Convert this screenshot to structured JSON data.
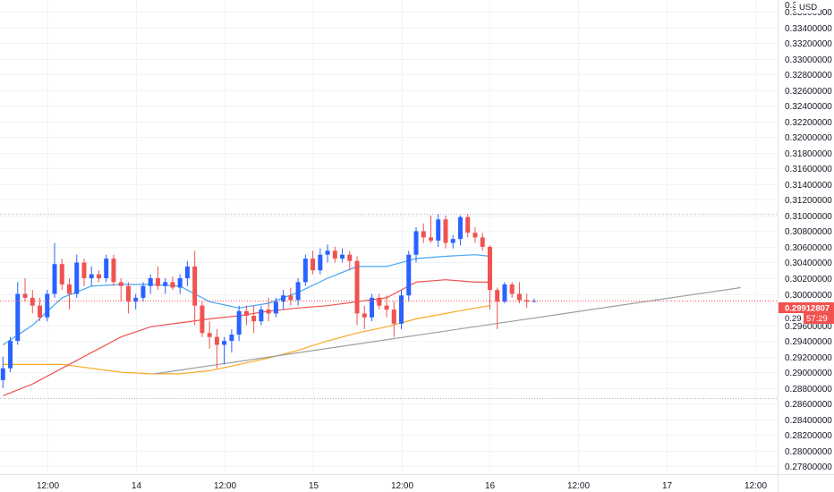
{
  "currency_label": "USD",
  "price_label": {
    "value": "0.29912807",
    "countdown": "57:29",
    "price_prefix": "0.29"
  },
  "colors": {
    "up": "#2962ff",
    "down": "#ef5350",
    "grid": "#f0f3fa",
    "ma_fast": "#42a5f5",
    "ma_mid": "#ef5350",
    "ma_slow": "#f9a825",
    "trendline": "#9e9e9e",
    "hline": "#b2b5be",
    "current_price": "#ef5350"
  },
  "chart_data": {
    "type": "candlestick",
    "y_axis": {
      "min": 0.277,
      "max": 0.3375,
      "ticks": [
        "0.33600000",
        "0.33400000",
        "0.33200000",
        "0.33000000",
        "0.32800000",
        "0.32600000",
        "0.32400000",
        "0.32200000",
        "0.32000000",
        "0.31800000",
        "0.31600000",
        "0.31400000",
        "0.31200000",
        "0.31000000",
        "0.30800000",
        "0.30600000",
        "0.30400000",
        "0.30200000",
        "0.30000000",
        "0.29600000",
        "0.29400000",
        "0.29200000",
        "0.29000000",
        "0.28800000",
        "0.28600000",
        "0.28400000",
        "0.28200000",
        "0.28000000",
        "0.27800000"
      ],
      "top_partial": "0.3"
    },
    "x_axis": {
      "ticks": [
        {
          "label": "12:00",
          "t": 6
        },
        {
          "label": "14",
          "t": 18
        },
        {
          "label": "12:00",
          "t": 30
        },
        {
          "label": "15",
          "t": 42
        },
        {
          "label": "12:00",
          "t": 54
        },
        {
          "label": "16",
          "t": 66
        },
        {
          "label": "12:00",
          "t": 78
        },
        {
          "label": "17",
          "t": 90
        },
        {
          "label": "12:00",
          "t": 102
        }
      ],
      "t_min": -0.4,
      "t_max": 105
    },
    "candles": [
      {
        "t": 0,
        "o": 0.289,
        "h": 0.292,
        "l": 0.288,
        "c": 0.2905
      },
      {
        "t": 1,
        "o": 0.2905,
        "h": 0.2945,
        "l": 0.29,
        "c": 0.294
      },
      {
        "t": 2,
        "o": 0.294,
        "h": 0.3015,
        "l": 0.2935,
        "c": 0.3
      },
      {
        "t": 3,
        "o": 0.3,
        "h": 0.302,
        "l": 0.299,
        "c": 0.2995
      },
      {
        "t": 4,
        "o": 0.2995,
        "h": 0.3005,
        "l": 0.2975,
        "c": 0.2985
      },
      {
        "t": 5,
        "o": 0.2985,
        "h": 0.2995,
        "l": 0.2965,
        "c": 0.297
      },
      {
        "t": 6,
        "o": 0.297,
        "h": 0.3005,
        "l": 0.2965,
        "c": 0.3
      },
      {
        "t": 7,
        "o": 0.3,
        "h": 0.3065,
        "l": 0.2995,
        "c": 0.3038
      },
      {
        "t": 8,
        "o": 0.3038,
        "h": 0.3045,
        "l": 0.3005,
        "c": 0.3012
      },
      {
        "t": 9,
        "o": 0.3012,
        "h": 0.302,
        "l": 0.298,
        "c": 0.3
      },
      {
        "t": 10,
        "o": 0.3,
        "h": 0.305,
        "l": 0.2995,
        "c": 0.304
      },
      {
        "t": 11,
        "o": 0.304,
        "h": 0.3045,
        "l": 0.301,
        "c": 0.302
      },
      {
        "t": 12,
        "o": 0.302,
        "h": 0.3035,
        "l": 0.301,
        "c": 0.3025
      },
      {
        "t": 13,
        "o": 0.3025,
        "h": 0.303,
        "l": 0.3015,
        "c": 0.302
      },
      {
        "t": 14,
        "o": 0.302,
        "h": 0.305,
        "l": 0.3015,
        "c": 0.3045
      },
      {
        "t": 15,
        "o": 0.3045,
        "h": 0.305,
        "l": 0.301,
        "c": 0.3015
      },
      {
        "t": 16,
        "o": 0.3015,
        "h": 0.302,
        "l": 0.299,
        "c": 0.301
      },
      {
        "t": 17,
        "o": 0.301,
        "h": 0.3015,
        "l": 0.2975,
        "c": 0.299
      },
      {
        "t": 18,
        "o": 0.299,
        "h": 0.3,
        "l": 0.298,
        "c": 0.2995
      },
      {
        "t": 19,
        "o": 0.2995,
        "h": 0.3015,
        "l": 0.299,
        "c": 0.301
      },
      {
        "t": 20,
        "o": 0.301,
        "h": 0.3025,
        "l": 0.3,
        "c": 0.302
      },
      {
        "t": 21,
        "o": 0.302,
        "h": 0.3035,
        "l": 0.3005,
        "c": 0.301
      },
      {
        "t": 22,
        "o": 0.301,
        "h": 0.302,
        "l": 0.3,
        "c": 0.3015
      },
      {
        "t": 23,
        "o": 0.3015,
        "h": 0.3022,
        "l": 0.3005,
        "c": 0.3008
      },
      {
        "t": 24,
        "o": 0.3008,
        "h": 0.3025,
        "l": 0.3,
        "c": 0.302
      },
      {
        "t": 25,
        "o": 0.302,
        "h": 0.3042,
        "l": 0.301,
        "c": 0.3035
      },
      {
        "t": 26,
        "o": 0.3035,
        "h": 0.3055,
        "l": 0.296,
        "c": 0.2985
      },
      {
        "t": 27,
        "o": 0.2985,
        "h": 0.299,
        "l": 0.2945,
        "c": 0.295
      },
      {
        "t": 28,
        "o": 0.295,
        "h": 0.2965,
        "l": 0.293,
        "c": 0.2945
      },
      {
        "t": 29,
        "o": 0.2945,
        "h": 0.2955,
        "l": 0.2905,
        "c": 0.2935
      },
      {
        "t": 30,
        "o": 0.2935,
        "h": 0.2945,
        "l": 0.291,
        "c": 0.294
      },
      {
        "t": 31,
        "o": 0.294,
        "h": 0.2955,
        "l": 0.2925,
        "c": 0.2948
      },
      {
        "t": 32,
        "o": 0.2948,
        "h": 0.2985,
        "l": 0.294,
        "c": 0.2978
      },
      {
        "t": 33,
        "o": 0.2978,
        "h": 0.2985,
        "l": 0.296,
        "c": 0.2972
      },
      {
        "t": 34,
        "o": 0.2972,
        "h": 0.2985,
        "l": 0.295,
        "c": 0.2965
      },
      {
        "t": 35,
        "o": 0.2965,
        "h": 0.2985,
        "l": 0.296,
        "c": 0.298
      },
      {
        "t": 36,
        "o": 0.298,
        "h": 0.2995,
        "l": 0.2965,
        "c": 0.2975
      },
      {
        "t": 37,
        "o": 0.2975,
        "h": 0.2995,
        "l": 0.297,
        "c": 0.299
      },
      {
        "t": 38,
        "o": 0.299,
        "h": 0.3005,
        "l": 0.298,
        "c": 0.2998
      },
      {
        "t": 39,
        "o": 0.2998,
        "h": 0.3008,
        "l": 0.2985,
        "c": 0.2992
      },
      {
        "t": 40,
        "o": 0.2992,
        "h": 0.302,
        "l": 0.2985,
        "c": 0.3015
      },
      {
        "t": 41,
        "o": 0.3015,
        "h": 0.305,
        "l": 0.301,
        "c": 0.3045
      },
      {
        "t": 42,
        "o": 0.3045,
        "h": 0.3055,
        "l": 0.3025,
        "c": 0.303
      },
      {
        "t": 43,
        "o": 0.303,
        "h": 0.3058,
        "l": 0.3025,
        "c": 0.305
      },
      {
        "t": 44,
        "o": 0.305,
        "h": 0.3063,
        "l": 0.304,
        "c": 0.3055
      },
      {
        "t": 45,
        "o": 0.3055,
        "h": 0.306,
        "l": 0.304,
        "c": 0.3045
      },
      {
        "t": 46,
        "o": 0.3045,
        "h": 0.3058,
        "l": 0.304,
        "c": 0.305
      },
      {
        "t": 47,
        "o": 0.305,
        "h": 0.3055,
        "l": 0.303,
        "c": 0.3042
      },
      {
        "t": 48,
        "o": 0.3042,
        "h": 0.3048,
        "l": 0.296,
        "c": 0.2975
      },
      {
        "t": 49,
        "o": 0.2975,
        "h": 0.2985,
        "l": 0.2955,
        "c": 0.297
      },
      {
        "t": 50,
        "o": 0.297,
        "h": 0.3,
        "l": 0.2965,
        "c": 0.2995
      },
      {
        "t": 51,
        "o": 0.2995,
        "h": 0.3,
        "l": 0.298,
        "c": 0.2985
      },
      {
        "t": 52,
        "o": 0.2985,
        "h": 0.2998,
        "l": 0.297,
        "c": 0.298
      },
      {
        "t": 53,
        "o": 0.298,
        "h": 0.299,
        "l": 0.2945,
        "c": 0.2962
      },
      {
        "t": 54,
        "o": 0.2962,
        "h": 0.3005,
        "l": 0.2955,
        "c": 0.2998
      },
      {
        "t": 55,
        "o": 0.2998,
        "h": 0.3055,
        "l": 0.299,
        "c": 0.305
      },
      {
        "t": 56,
        "o": 0.305,
        "h": 0.3085,
        "l": 0.304,
        "c": 0.308
      },
      {
        "t": 57,
        "o": 0.308,
        "h": 0.309,
        "l": 0.3065,
        "c": 0.3072
      },
      {
        "t": 58,
        "o": 0.3072,
        "h": 0.31,
        "l": 0.3065,
        "c": 0.3068
      },
      {
        "t": 59,
        "o": 0.3068,
        "h": 0.3102,
        "l": 0.306,
        "c": 0.3095
      },
      {
        "t": 60,
        "o": 0.3095,
        "h": 0.31,
        "l": 0.3058,
        "c": 0.3065
      },
      {
        "t": 61,
        "o": 0.3065,
        "h": 0.3075,
        "l": 0.3058,
        "c": 0.307
      },
      {
        "t": 62,
        "o": 0.307,
        "h": 0.31,
        "l": 0.3062,
        "c": 0.3098
      },
      {
        "t": 63,
        "o": 0.3098,
        "h": 0.3102,
        "l": 0.3072,
        "c": 0.3078
      },
      {
        "t": 64,
        "o": 0.3078,
        "h": 0.3085,
        "l": 0.3065,
        "c": 0.3072
      },
      {
        "t": 65,
        "o": 0.3072,
        "h": 0.3078,
        "l": 0.3055,
        "c": 0.306
      },
      {
        "t": 66,
        "o": 0.306,
        "h": 0.3062,
        "l": 0.298,
        "c": 0.3005
      },
      {
        "t": 67,
        "o": 0.3005,
        "h": 0.3008,
        "l": 0.2955,
        "c": 0.299
      },
      {
        "t": 68,
        "o": 0.299,
        "h": 0.3015,
        "l": 0.2988,
        "c": 0.3012
      },
      {
        "t": 69,
        "o": 0.3012,
        "h": 0.3015,
        "l": 0.2995,
        "c": 0.3
      },
      {
        "t": 70,
        "o": 0.3,
        "h": 0.3015,
        "l": 0.2988,
        "c": 0.2992
      },
      {
        "t": 71,
        "o": 0.2992,
        "h": 0.3,
        "l": 0.2982,
        "c": 0.299
      },
      {
        "t": 72,
        "o": 0.2991,
        "h": 0.2994,
        "l": 0.2989,
        "c": 0.2991
      }
    ],
    "ma_fast": [
      [
        0,
        0.2935
      ],
      [
        4,
        0.296
      ],
      [
        8,
        0.2995
      ],
      [
        12,
        0.301
      ],
      [
        16,
        0.3012
      ],
      [
        20,
        0.3012
      ],
      [
        24,
        0.301
      ],
      [
        28,
        0.299
      ],
      [
        32,
        0.2982
      ],
      [
        36,
        0.2988
      ],
      [
        40,
        0.3002
      ],
      [
        44,
        0.302
      ],
      [
        48,
        0.3035
      ],
      [
        52,
        0.3035
      ],
      [
        56,
        0.3045
      ],
      [
        60,
        0.3048
      ],
      [
        64,
        0.305
      ],
      [
        66,
        0.3048
      ]
    ],
    "ma_mid": [
      [
        0,
        0.287
      ],
      [
        4,
        0.2885
      ],
      [
        8,
        0.2905
      ],
      [
        12,
        0.2925
      ],
      [
        16,
        0.2945
      ],
      [
        20,
        0.2958
      ],
      [
        24,
        0.2963
      ],
      [
        28,
        0.2968
      ],
      [
        32,
        0.2972
      ],
      [
        36,
        0.2978
      ],
      [
        40,
        0.2982
      ],
      [
        44,
        0.2985
      ],
      [
        48,
        0.299
      ],
      [
        52,
        0.2995
      ],
      [
        56,
        0.3015
      ],
      [
        60,
        0.3018
      ],
      [
        64,
        0.3015
      ],
      [
        66,
        0.3015
      ]
    ],
    "ma_slow": [
      [
        0,
        0.291
      ],
      [
        4,
        0.291
      ],
      [
        8,
        0.291
      ],
      [
        12,
        0.2905
      ],
      [
        16,
        0.29
      ],
      [
        20,
        0.2898
      ],
      [
        24,
        0.2898
      ],
      [
        28,
        0.2902
      ],
      [
        32,
        0.291
      ],
      [
        36,
        0.2918
      ],
      [
        40,
        0.2928
      ],
      [
        44,
        0.294
      ],
      [
        48,
        0.295
      ],
      [
        52,
        0.2958
      ],
      [
        56,
        0.2968
      ],
      [
        60,
        0.2975
      ],
      [
        64,
        0.2982
      ],
      [
        66,
        0.2985
      ]
    ],
    "trendline": {
      "from": [
        20.6,
        0.2898
      ],
      "to": [
        100,
        0.3008
      ]
    },
    "hlines": [
      0.3102,
      0.2867
    ]
  }
}
